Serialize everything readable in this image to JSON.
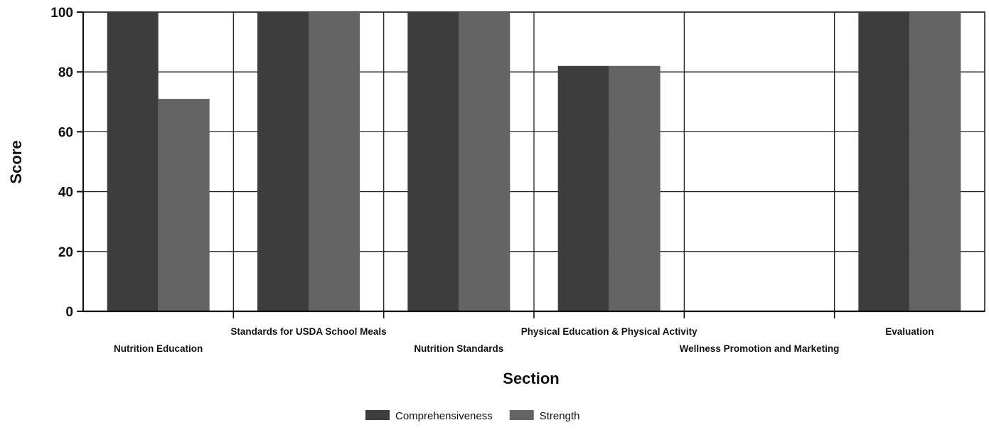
{
  "chart_data": {
    "type": "bar",
    "title": "",
    "xlabel": "Section",
    "ylabel": "Score",
    "ylim": [
      0,
      100
    ],
    "yticks": [
      0,
      20,
      40,
      60,
      80,
      100
    ],
    "grid": true,
    "legend_position": "bottom",
    "categories": [
      "Nutrition Education",
      "Standards for USDA School Meals",
      "Nutrition Standards",
      "Physical Education & Physical Activity",
      "Wellness Promotion and Marketing",
      "Evaluation"
    ],
    "series": [
      {
        "name": "Comprehensiveness",
        "color": "#3d3d3d",
        "values": [
          100,
          100,
          100,
          82,
          0,
          100
        ]
      },
      {
        "name": "Strength",
        "color": "#646464",
        "values": [
          71,
          100,
          100,
          82,
          0,
          100
        ]
      }
    ]
  }
}
